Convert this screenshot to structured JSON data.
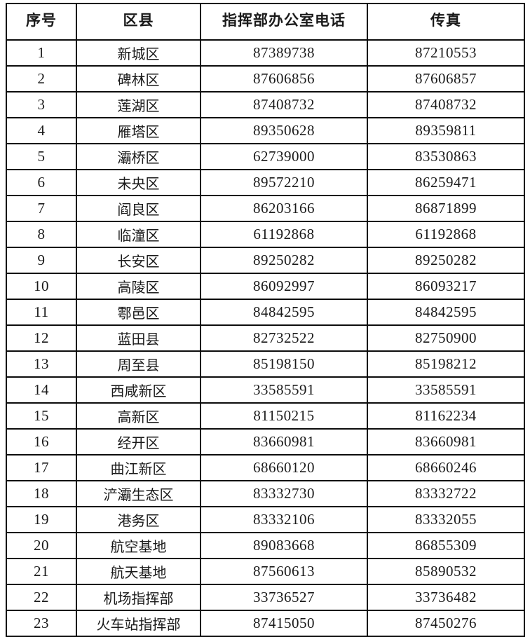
{
  "table": {
    "title_hint": "区县指挥部联系电话表",
    "colors": {
      "border": "#0c0c0c",
      "background": "#ffffff",
      "text": "#1a1a1a"
    },
    "headers": [
      "序号",
      "区县",
      "指挥部办公室电话",
      "传真"
    ],
    "column_keys": [
      "cell-index",
      "cell-district",
      "cell-phone",
      "cell-fax"
    ],
    "rows": [
      [
        "1",
        "新城区",
        "87389738",
        "87210553"
      ],
      [
        "2",
        "碑林区",
        "87606856",
        "87606857"
      ],
      [
        "3",
        "莲湖区",
        "87408732",
        "87408732"
      ],
      [
        "4",
        "雁塔区",
        "89350628",
        "89359811"
      ],
      [
        "5",
        "灞桥区",
        "62739000",
        "83530863"
      ],
      [
        "6",
        "未央区",
        "89572210",
        "86259471"
      ],
      [
        "7",
        "阎良区",
        "86203166",
        "86871899"
      ],
      [
        "8",
        "临潼区",
        "61192868",
        "61192868"
      ],
      [
        "9",
        "长安区",
        "89250282",
        "89250282"
      ],
      [
        "10",
        "高陵区",
        "86092997",
        "86093217"
      ],
      [
        "11",
        "鄠邑区",
        "84842595",
        "84842595"
      ],
      [
        "12",
        "蓝田县",
        "82732522",
        "82750900"
      ],
      [
        "13",
        "周至县",
        "85198150",
        "85198212"
      ],
      [
        "14",
        "西咸新区",
        "33585591",
        "33585591"
      ],
      [
        "15",
        "高新区",
        "81150215",
        "81162234"
      ],
      [
        "16",
        "经开区",
        "83660981",
        "83660981"
      ],
      [
        "17",
        "曲江新区",
        "68660120",
        "68660246"
      ],
      [
        "18",
        "浐灞生态区",
        "83332730",
        "83332722"
      ],
      [
        "19",
        "港务区",
        "83332106",
        "83332055"
      ],
      [
        "20",
        "航空基地",
        "89083668",
        "86855309"
      ],
      [
        "21",
        "航天基地",
        "87560613",
        "85890532"
      ],
      [
        "22",
        "机场指挥部",
        "33736527",
        "33736482"
      ],
      [
        "23",
        "火车站指挥部",
        "87415050",
        "87450276"
      ]
    ]
  }
}
